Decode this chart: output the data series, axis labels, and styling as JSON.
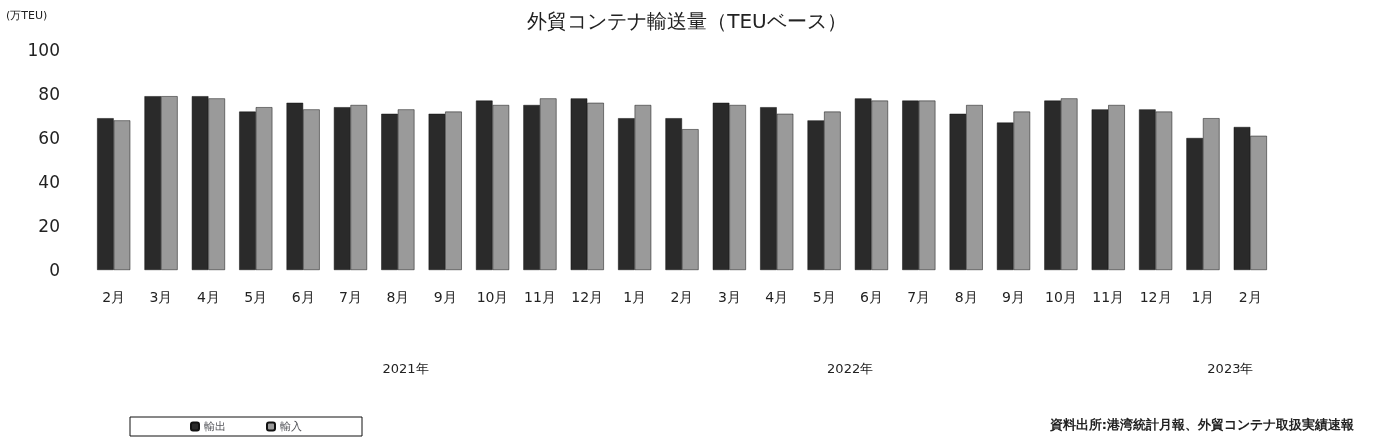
{
  "chart_data": {
    "type": "bar",
    "title": "外貿コンテナ輸送量（TEUベース）",
    "ylabel": "(万TEU)",
    "categories": [
      "2月",
      "3月",
      "4月",
      "5月",
      "6月",
      "7月",
      "8月",
      "9月",
      "10月",
      "11月",
      "12月",
      "1月",
      "2月",
      "3月",
      "4月",
      "5月",
      "6月",
      "7月",
      "8月",
      "9月",
      "10月",
      "11月",
      "12月",
      "1月",
      "2月"
    ],
    "series": [
      {
        "name": "輸出",
        "color": "#2a2a2a",
        "values": [
          69,
          79,
          79,
          72,
          76,
          74,
          71,
          71,
          77,
          75,
          78,
          69,
          69,
          76,
          74,
          68,
          78,
          77,
          71,
          67,
          77,
          73,
          73,
          60,
          65
        ]
      },
      {
        "name": "輸入",
        "color": "#9a9a9a",
        "values": [
          68,
          79,
          78,
          74,
          73,
          75,
          73,
          72,
          75,
          78,
          76,
          75,
          64,
          75,
          71,
          72,
          77,
          77,
          75,
          72,
          78,
          75,
          72,
          69,
          61
        ]
      }
    ],
    "ylim": [
      0,
      100
    ],
    "yticks": [
      0,
      20,
      40,
      60,
      80,
      100
    ],
    "grid": false,
    "legend": "bottom left",
    "annotations": [
      "2021年",
      "2022年",
      "2023年",
      "資料出所:港湾統計月報、外貿コンテナ取扱実績速報"
    ]
  }
}
